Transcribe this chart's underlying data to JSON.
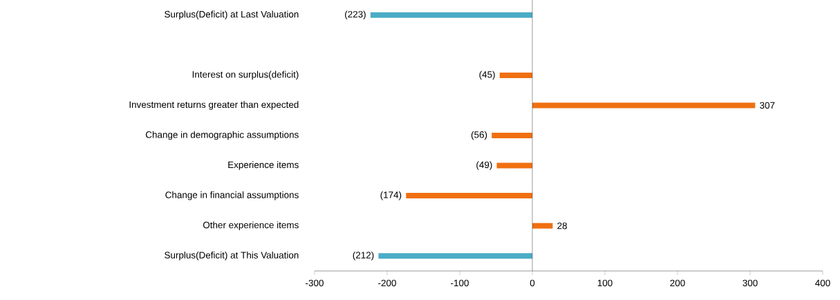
{
  "chart_data": {
    "type": "bar",
    "orientation": "horizontal",
    "categories": [
      "Surplus(Deficit) at Last Valuation",
      null,
      "Interest on surplus(deficit)",
      "Investment returns greater than expected",
      "Change in demographic assumptions",
      "Experience items",
      "Change in financial assumptions",
      "Other experience items",
      "Surplus(Deficit) at This Valuation"
    ],
    "values": [
      -223,
      null,
      -45,
      307,
      -56,
      -49,
      -174,
      28,
      -212
    ],
    "colors": [
      "#4bacc6",
      null,
      "#f07010",
      "#f07010",
      "#f07010",
      "#f07010",
      "#f07010",
      "#f07010",
      "#4bacc6"
    ],
    "value_labels": [
      "(223)",
      null,
      "(45)",
      "307",
      "(56)",
      "(49)",
      "(174)",
      "28",
      "(212)"
    ],
    "xlim": [
      -300,
      400
    ],
    "xticks": [
      -300,
      -200,
      -100,
      0,
      100,
      200,
      300,
      400
    ]
  }
}
